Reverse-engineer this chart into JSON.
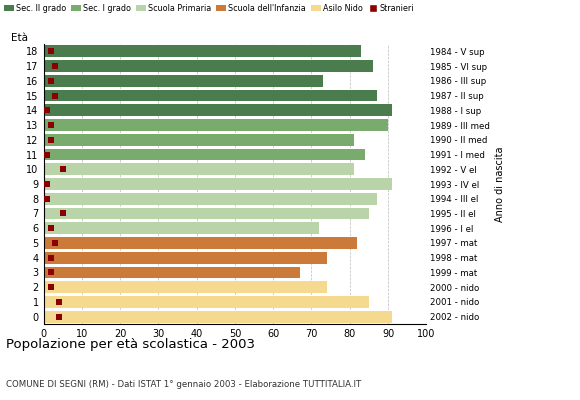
{
  "ages": [
    18,
    17,
    16,
    15,
    14,
    13,
    12,
    11,
    10,
    9,
    8,
    7,
    6,
    5,
    4,
    3,
    2,
    1,
    0
  ],
  "anno_nascita_labels": [
    "1984 - V sup",
    "1985 - VI sup",
    "1986 - III sup",
    "1987 - II sup",
    "1988 - I sup",
    "1989 - III med",
    "1990 - II med",
    "1991 - I med",
    "1992 - V el",
    "1993 - IV el",
    "1994 - III el",
    "1995 - II el",
    "1996 - I el",
    "1997 - mat",
    "1998 - mat",
    "1999 - mat",
    "2000 - nido",
    "2001 - nido",
    "2002 - nido"
  ],
  "bar_values": [
    83,
    86,
    73,
    87,
    91,
    90,
    81,
    84,
    81,
    91,
    87,
    85,
    72,
    82,
    74,
    67,
    74,
    85,
    91
  ],
  "bar_colors": [
    "#4a7c4e",
    "#4a7c4e",
    "#4a7c4e",
    "#4a7c4e",
    "#4a7c4e",
    "#7aab6e",
    "#7aab6e",
    "#7aab6e",
    "#b8d4a8",
    "#b8d4a8",
    "#b8d4a8",
    "#b8d4a8",
    "#b8d4a8",
    "#cc7a3a",
    "#cc7a3a",
    "#cc7a3a",
    "#f5d98e",
    "#f5d98e",
    "#f5d98e"
  ],
  "stranieri_values": [
    2,
    3,
    2,
    3,
    1,
    2,
    2,
    1,
    5,
    1,
    1,
    5,
    2,
    3,
    2,
    2,
    2,
    4,
    4
  ],
  "stranieri_color": "#8b0000",
  "xlim": [
    0,
    100
  ],
  "ylabel": "Età",
  "title": "Popolazione per età scolastica - 2003",
  "subtitle": "COMUNE DI SEGNI (RM) - Dati ISTAT 1° gennaio 2003 - Elaborazione TUTTITALIA.IT",
  "legend_labels": [
    "Sec. II grado",
    "Sec. I grado",
    "Scuola Primaria",
    "Scuola dell'Infanzia",
    "Asilo Nido",
    "Stranieri"
  ],
  "legend_colors": [
    "#4a7c4e",
    "#7aab6e",
    "#b8d4a8",
    "#cc7a3a",
    "#f5d98e",
    "#8b0000"
  ],
  "bar_height": 0.8,
  "grid_color": "#bbbbbb",
  "bg_color": "#ffffff",
  "xticks": [
    0,
    10,
    20,
    30,
    40,
    50,
    60,
    70,
    80,
    90,
    100
  ]
}
